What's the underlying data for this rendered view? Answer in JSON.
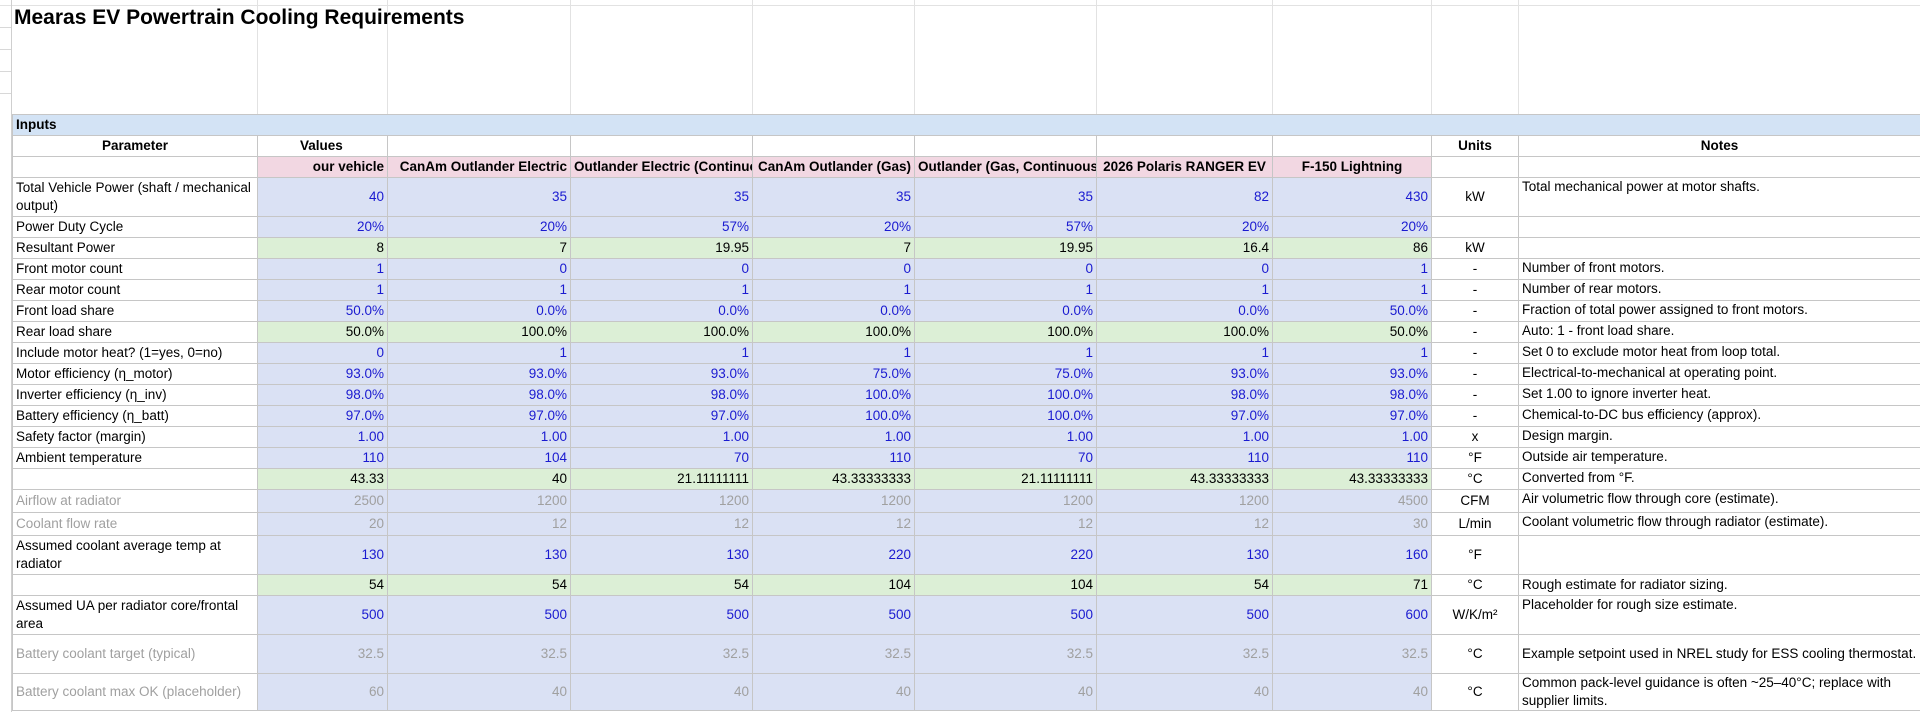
{
  "title": "Mearas EV Powertrain Cooling Requirements",
  "section_label": "Inputs",
  "headers": {
    "parameter": "Parameter",
    "values": "Values",
    "units": "Units",
    "notes": "Notes"
  },
  "vehicles": [
    "our vehicle",
    "CanAm Outlander Electric",
    "Outlander Electric (Continuous)",
    "CanAm Outlander (Gas)",
    "Outlander (Gas, Continuous)",
    "2026 Polaris RANGER EV",
    "F-150 Lightning"
  ],
  "rows": [
    {
      "label": "Total Vehicle Power (shaft / mechanical output)",
      "values": [
        "40",
        "35",
        "35",
        "35",
        "35",
        "82",
        "430"
      ],
      "unit": "kW",
      "note": "Total mechanical power at motor shafts."
    },
    {
      "label": "Power Duty Cycle",
      "values": [
        "20%",
        "20%",
        "57%",
        "20%",
        "57%",
        "20%",
        "20%"
      ],
      "unit": "",
      "note": ""
    },
    {
      "label": "Resultant Power",
      "values": [
        "8",
        "7",
        "19.95",
        "7",
        "19.95",
        "16.4",
        "86"
      ],
      "unit": "kW",
      "note": ""
    },
    {
      "label": "Front motor count",
      "values": [
        "1",
        "0",
        "0",
        "0",
        "0",
        "0",
        "1"
      ],
      "unit": "-",
      "note": "Number of front motors."
    },
    {
      "label": "Rear motor count",
      "values": [
        "1",
        "1",
        "1",
        "1",
        "1",
        "1",
        "1"
      ],
      "unit": "-",
      "note": "Number of rear motors."
    },
    {
      "label": "Front load share",
      "values": [
        "50.0%",
        "0.0%",
        "0.0%",
        "0.0%",
        "0.0%",
        "0.0%",
        "50.0%"
      ],
      "unit": "-",
      "note": "Fraction of total power assigned to front motors."
    },
    {
      "label": "Rear load share",
      "values": [
        "50.0%",
        "100.0%",
        "100.0%",
        "100.0%",
        "100.0%",
        "100.0%",
        "50.0%"
      ],
      "unit": "-",
      "note": "Auto: 1 - front load share."
    },
    {
      "label": "Include motor heat? (1=yes, 0=no)",
      "values": [
        "0",
        "1",
        "1",
        "1",
        "1",
        "1",
        "1"
      ],
      "unit": "-",
      "note": "Set 0 to exclude motor heat from loop total."
    },
    {
      "label": "Motor efficiency (η_motor)",
      "values": [
        "93.0%",
        "93.0%",
        "93.0%",
        "75.0%",
        "75.0%",
        "93.0%",
        "93.0%"
      ],
      "unit": "-",
      "note": "Electrical-to-mechanical at operating point."
    },
    {
      "label": "Inverter efficiency (η_inv)",
      "values": [
        "98.0%",
        "98.0%",
        "98.0%",
        "100.0%",
        "100.0%",
        "98.0%",
        "98.0%"
      ],
      "unit": "-",
      "note": "Set 1.00 to ignore inverter heat."
    },
    {
      "label": "Battery efficiency (η_batt)",
      "values": [
        "97.0%",
        "97.0%",
        "97.0%",
        "100.0%",
        "100.0%",
        "97.0%",
        "97.0%"
      ],
      "unit": "-",
      "note": "Chemical-to-DC bus efficiency (approx)."
    },
    {
      "label": "Safety factor (margin)",
      "values": [
        "1.00",
        "1.00",
        "1.00",
        "1.00",
        "1.00",
        "1.00",
        "1.00"
      ],
      "unit": "x",
      "note": "Design margin."
    },
    {
      "label": "Ambient temperature",
      "values": [
        "110",
        "104",
        "70",
        "110",
        "70",
        "110",
        "110"
      ],
      "unit": "°F",
      "note": "Outside air temperature."
    },
    {
      "label": "",
      "values": [
        "43.33",
        "40",
        "21.11111111",
        "43.33333333",
        "21.11111111",
        "43.33333333",
        "43.33333333"
      ],
      "unit": "°C",
      "note": "Converted from °F."
    },
    {
      "label": "Airflow at radiator",
      "values": [
        "2500",
        "1200",
        "1200",
        "1200",
        "1200",
        "1200",
        "4500"
      ],
      "unit": "CFM",
      "note": "Air volumetric flow through core (estimate)."
    },
    {
      "label": "Coolant flow rate",
      "values": [
        "20",
        "12",
        "12",
        "12",
        "12",
        "12",
        "30"
      ],
      "unit": "L/min",
      "note": "Coolant volumetric flow through radiator (estimate)."
    },
    {
      "label": "Assumed coolant average temp at radiator",
      "values": [
        "130",
        "130",
        "130",
        "220",
        "220",
        "130",
        "160"
      ],
      "unit": "°F",
      "note": ""
    },
    {
      "label": "",
      "values": [
        "54",
        "54",
        "54",
        "104",
        "104",
        "54",
        "71"
      ],
      "unit": "°C",
      "note": "Rough estimate for radiator sizing."
    },
    {
      "label": "Assumed UA per radiator core/frontal area",
      "values": [
        "500",
        "500",
        "500",
        "500",
        "500",
        "500",
        "600"
      ],
      "unit": "W/K/m²",
      "note": "Placeholder for rough size estimate."
    },
    {
      "label": "Battery coolant target (typical)",
      "values": [
        "32.5",
        "32.5",
        "32.5",
        "32.5",
        "32.5",
        "32.5",
        "32.5"
      ],
      "unit": "°C",
      "note": "Example setpoint used in NREL study for ESS cooling thermostat."
    },
    {
      "label": "Battery coolant max OK (placeholder)",
      "values": [
        "60",
        "40",
        "40",
        "40",
        "40",
        "40",
        "40"
      ],
      "unit": "°C",
      "note": "Common pack-level guidance is often ~25–40°C; replace with supplier limits."
    }
  ]
}
